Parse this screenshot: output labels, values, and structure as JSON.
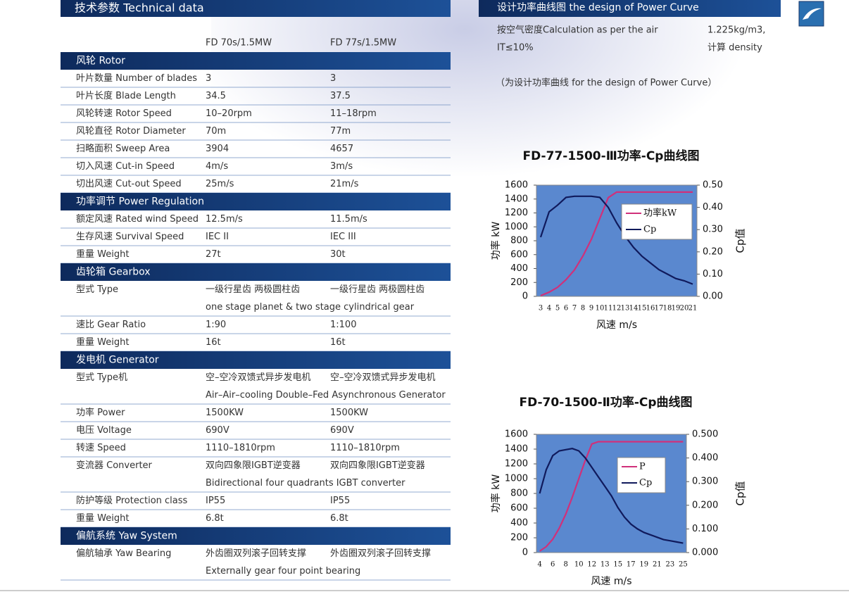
{
  "table": {
    "title": "技术参数 Technical data",
    "columns": [
      "FD 70s/1.5MW",
      "FD 77s/1.5MW"
    ],
    "sections": [
      {
        "heading": "风轮 Rotor",
        "rows": [
          {
            "label": "叶片数量 Number of blades",
            "values": [
              "3",
              "3"
            ]
          },
          {
            "label": "叶片长度 Blade Length",
            "values": [
              "34.5",
              "37.5"
            ]
          },
          {
            "label": "风轮转速 Rotor Speed",
            "values": [
              "10–20rpm",
              "11–18rpm"
            ]
          },
          {
            "label": "风轮直径 Rotor Diameter",
            "values": [
              "70m",
              "77m"
            ]
          },
          {
            "label": "扫略面积 Sweep Area",
            "values": [
              "3904",
              "4657"
            ]
          },
          {
            "label": "切入风速 Cut-in Speed",
            "values": [
              "4m/s",
              "3m/s"
            ]
          },
          {
            "label": "切出风速 Cut-out Speed",
            "values": [
              "25m/s",
              "21m/s"
            ]
          }
        ]
      },
      {
        "heading": "功率调节 Power Regulation",
        "rows": [
          {
            "label": "额定风速 Rated wind Speed",
            "values": [
              "12.5m/s",
              "11.5m/s"
            ]
          },
          {
            "label": "生存风速 Survival Speed",
            "values": [
              "IEC II",
              "IEC III"
            ]
          },
          {
            "label": "重量 Weight",
            "values": [
              "27t",
              "30t"
            ]
          }
        ]
      },
      {
        "heading": "齿轮箱 Gearbox",
        "rows": [
          {
            "label": "型式 Type",
            "values": [
              "一级行星齿 两极圆柱齿",
              "一级行星齿 两极圆柱齿"
            ],
            "note": "one stage planet & two stage cylindrical gear"
          },
          {
            "label": "速比 Gear Ratio",
            "values": [
              "1:90",
              "1:100"
            ]
          },
          {
            "label": "重量 Weight",
            "values": [
              "16t",
              "16t"
            ]
          }
        ]
      },
      {
        "heading": "发电机 Generator",
        "rows": [
          {
            "label": "型式 Type机",
            "values": [
              "空–空冷双馈式异步发电机",
              "空–空冷双馈式异步发电机"
            ],
            "note": "Air–Air–cooling Double–Fed Asynchronous Generator"
          },
          {
            "label": "功率 Power",
            "values": [
              "1500KW",
              "1500KW"
            ]
          },
          {
            "label": "电压 Voltage",
            "values": [
              "690V",
              "690V"
            ]
          },
          {
            "label": "转速 Speed",
            "values": [
              "1110–1810rpm",
              "1110–1810rpm"
            ]
          },
          {
            "label": "变流器 Converter",
            "values": [
              "双向四象限IGBT逆变器",
              "双向四象限IGBT逆变器"
            ],
            "note": "Bidirectional four quadrants IGBT converter"
          },
          {
            "label": "防护等级 Protection class",
            "values": [
              "IP55",
              "IP55"
            ]
          },
          {
            "label": "重量 Weight",
            "values": [
              "6.8t",
              "6.8t"
            ]
          }
        ]
      },
      {
        "heading": "偏航系统 Yaw System",
        "rows": [
          {
            "label": "偏航轴承 Yaw Bearing",
            "values": [
              "外齿圈双列滚子回转支撑",
              "外齿圈双列滚子回转支撑"
            ],
            "note": "Externally gear four point bearing"
          }
        ]
      }
    ]
  },
  "design": {
    "heading": "设计功率曲线图  the design of Power Curve",
    "line1": [
      "按空气密度Calculation as per the air",
      "1.225kg/m3,"
    ],
    "line2": [
      "IT≤10%",
      "计算 density"
    ],
    "note": "（为设计功率曲线 for the design of Power Curve）"
  },
  "chart_data": [
    {
      "type": "line",
      "title": "FD-77-1500-Ⅲ功率-Cp曲线图",
      "x_label": "风速 m/s",
      "y_label": "功率 kW",
      "y2_label": "Cp值",
      "categories": [
        3,
        4,
        5,
        6,
        7,
        8,
        9,
        10,
        11,
        12,
        13,
        14,
        15,
        16,
        17,
        18,
        19,
        20,
        21
      ],
      "ylim": [
        0,
        1600
      ],
      "yticks": [
        0,
        200,
        400,
        600,
        800,
        1000,
        1200,
        1400,
        1600
      ],
      "y2lim": [
        0,
        0.5
      ],
      "y2ticks": [
        {
          "value": 0,
          "label": "0.00"
        },
        {
          "value": 0.1,
          "label": "0.10"
        },
        {
          "value": 0.2,
          "label": "0.20"
        },
        {
          "value": 0.3,
          "label": "0.30"
        },
        {
          "value": 0.4,
          "label": "0.40"
        },
        {
          "value": 0.5,
          "label": "0.50"
        }
      ],
      "plot_color": "#5a88cf",
      "series": [
        {
          "name": "功率kW",
          "color": "#d0307a",
          "values": [
            10,
            60,
            130,
            240,
            380,
            580,
            820,
            1120,
            1420,
            1500,
            1500,
            1500,
            1500,
            1500,
            1500,
            1500,
            1500,
            1500,
            1500
          ]
        },
        {
          "name": "Cp",
          "color": "#101a5c",
          "axis": "y2",
          "values": [
            0.266,
            0.38,
            0.41,
            0.445,
            0.45,
            0.45,
            0.45,
            0.445,
            0.4,
            0.33,
            0.27,
            0.22,
            0.18,
            0.15,
            0.12,
            0.1,
            0.08,
            0.07,
            0.055
          ]
        }
      ]
    },
    {
      "type": "line",
      "title": "FD-70-1500-Ⅱ功率-Cp曲线图",
      "x_label": "风速 m/s",
      "y_label": "功率 kW",
      "y2_label": "Cp值",
      "categories": [
        4,
        null,
        6,
        null,
        8,
        null,
        10,
        null,
        12,
        null,
        13,
        null,
        15,
        null,
        17,
        null,
        19,
        null,
        21,
        null,
        23,
        null,
        25
      ],
      "ylim": [
        0,
        1600
      ],
      "yticks": [
        0,
        200,
        400,
        600,
        800,
        1000,
        1200,
        1400,
        1600
      ],
      "y2lim": [
        0,
        0.5
      ],
      "y2ticks": [
        {
          "value": 0,
          "label": "0.000"
        },
        {
          "value": 0.1,
          "label": "0.100"
        },
        {
          "value": 0.2,
          "label": "0.200"
        },
        {
          "value": 0.3,
          "label": "0.300"
        },
        {
          "value": 0.4,
          "label": "0.400"
        },
        {
          "value": 0.5,
          "label": "0.500"
        }
      ],
      "plot_color": "#5a88cf",
      "series": [
        {
          "name": "P",
          "color": "#d0307a",
          "values": [
            20,
            80,
            180,
            330,
            520,
            750,
            1000,
            1250,
            1470,
            1500,
            1500,
            1500,
            1500,
            1500,
            1500,
            1500,
            1500,
            1500,
            1500,
            1500,
            1500,
            1500,
            1500
          ]
        },
        {
          "name": "Cp",
          "color": "#101a5c",
          "axis": "y2",
          "values": [
            0.25,
            0.35,
            0.41,
            0.43,
            0.435,
            0.44,
            0.43,
            0.4,
            0.36,
            0.32,
            0.28,
            0.24,
            0.19,
            0.15,
            0.12,
            0.1,
            0.085,
            0.075,
            0.065,
            0.055,
            0.05,
            0.045,
            0.04
          ]
        }
      ]
    }
  ]
}
